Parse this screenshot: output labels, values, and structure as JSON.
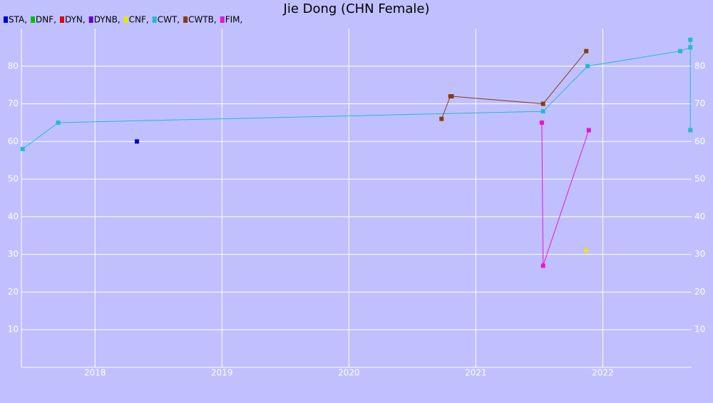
{
  "chart_data": {
    "type": "line",
    "title": "Jie Dong (CHN Female)",
    "xlim": [
      2017.42,
      2022.7
    ],
    "xticks": [
      2018,
      2019,
      2020,
      2021,
      2022
    ],
    "ylim": [
      0,
      90
    ],
    "yticks": [
      10,
      20,
      30,
      40,
      50,
      60,
      70,
      80
    ],
    "grid": true,
    "series": [
      {
        "name": "STA,",
        "color": "#0000cc",
        "x": [
          2018.33
        ],
        "values": [
          60
        ]
      },
      {
        "name": "DNF,",
        "color": "#00c000",
        "x": [],
        "values": []
      },
      {
        "name": "DYN,",
        "color": "#e00000",
        "x": [],
        "values": []
      },
      {
        "name": "DYNB,",
        "color": "#6600cc",
        "x": [],
        "values": []
      },
      {
        "name": "CNF,",
        "color": "#e8e800",
        "x": [
          2021.87
        ],
        "values": [
          31
        ]
      },
      {
        "name": "CWT,",
        "color": "#22bbcc",
        "x": [
          2017.43,
          2017.71,
          2021.53,
          2021.88,
          2022.61,
          2022.69,
          2022.69,
          2022.69
        ],
        "values": [
          58,
          65,
          68,
          80,
          84,
          85,
          87,
          63
        ]
      },
      {
        "name": "CWTB,",
        "color": "#8b3a0f",
        "x": [
          2020.73,
          2020.8,
          2020.81,
          2021.53,
          2021.87
        ],
        "values": [
          66,
          72,
          72,
          70,
          84
        ]
      },
      {
        "name": "FIM,",
        "color": "#ee11cc",
        "x": [
          2021.52,
          2021.53,
          2021.89
        ],
        "values": [
          65,
          27,
          63
        ]
      }
    ]
  }
}
